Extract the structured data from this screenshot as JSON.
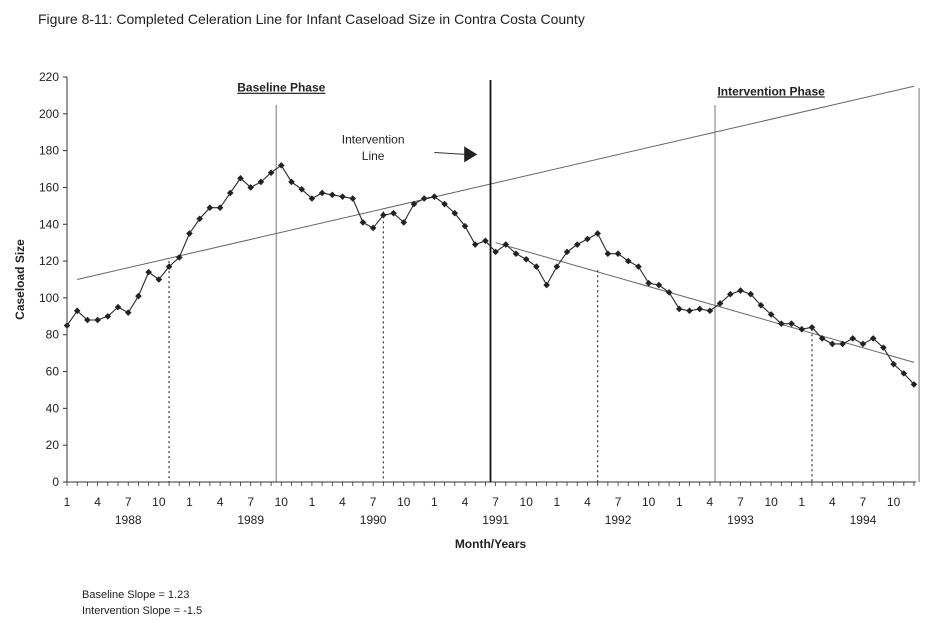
{
  "figure": {
    "title": "Figure 8-11: Completed Celeration Line for Infant Caseload Size in Contra Costa County",
    "notes": [
      "Baseline Slope = 1.23",
      "Intervention Slope = -1.5"
    ]
  },
  "chart_data": {
    "type": "line",
    "title": "Figure 8-11: Completed Celeration Line for Infant Caseload Size in Contra Costa County",
    "xlabel": "Month/Years",
    "ylabel": "Caseload Size",
    "ylim": [
      0,
      220
    ],
    "yticks": [
      0,
      20,
      40,
      60,
      80,
      100,
      120,
      140,
      160,
      180,
      200,
      220
    ],
    "xlim": [
      1,
      84
    ],
    "month_ticks": [
      {
        "i": 1,
        "label": "1"
      },
      {
        "i": 4,
        "label": "4"
      },
      {
        "i": 7,
        "label": "7"
      },
      {
        "i": 10,
        "label": "10"
      },
      {
        "i": 13,
        "label": "1"
      },
      {
        "i": 16,
        "label": "4"
      },
      {
        "i": 19,
        "label": "7"
      },
      {
        "i": 22,
        "label": "10"
      },
      {
        "i": 25,
        "label": "1"
      },
      {
        "i": 28,
        "label": "4"
      },
      {
        "i": 31,
        "label": "7"
      },
      {
        "i": 34,
        "label": "10"
      },
      {
        "i": 37,
        "label": "1"
      },
      {
        "i": 40,
        "label": "4"
      },
      {
        "i": 43,
        "label": "7"
      },
      {
        "i": 46,
        "label": "10"
      },
      {
        "i": 49,
        "label": "1"
      },
      {
        "i": 52,
        "label": "4"
      },
      {
        "i": 55,
        "label": "7"
      },
      {
        "i": 58,
        "label": "10"
      },
      {
        "i": 61,
        "label": "1"
      },
      {
        "i": 64,
        "label": "4"
      },
      {
        "i": 67,
        "label": "7"
      },
      {
        "i": 70,
        "label": "10"
      },
      {
        "i": 73,
        "label": "1"
      },
      {
        "i": 76,
        "label": "4"
      },
      {
        "i": 79,
        "label": "7"
      },
      {
        "i": 82,
        "label": "10"
      }
    ],
    "year_labels": [
      {
        "i": 7,
        "label": "1988"
      },
      {
        "i": 19,
        "label": "1989"
      },
      {
        "i": 31,
        "label": "1990"
      },
      {
        "i": 43,
        "label": "1991"
      },
      {
        "i": 55,
        "label": "1992"
      },
      {
        "i": 67,
        "label": "1993"
      },
      {
        "i": 79,
        "label": "1994"
      }
    ],
    "series": [
      {
        "values": [
          85,
          93,
          88,
          88,
          90,
          95,
          92,
          101,
          114,
          110,
          117,
          122,
          135,
          143,
          149,
          149,
          157,
          165,
          160,
          163,
          168,
          172,
          163,
          159,
          154,
          157,
          156,
          155,
          154,
          141,
          138,
          145,
          146,
          141,
          151,
          154,
          155,
          151,
          146,
          139,
          129,
          131,
          125,
          129,
          124,
          121,
          117,
          107,
          117,
          125,
          129,
          132,
          135,
          124,
          124,
          120,
          117,
          108,
          107,
          103,
          94,
          93,
          94,
          93,
          97,
          102,
          104,
          102,
          96,
          91,
          86,
          86,
          83,
          84,
          78,
          75,
          75,
          78,
          75,
          78,
          73,
          64,
          59,
          53
        ],
        "marker": "diamond"
      }
    ],
    "celeration_lines": [
      {
        "name": "baseline",
        "from": [
          2,
          110
        ],
        "to": [
          84,
          215
        ]
      },
      {
        "name": "intervention",
        "from": [
          43,
          130
        ],
        "to": [
          84,
          65
        ]
      }
    ],
    "vertical_lines": [
      {
        "i": 21.5,
        "style": "solid"
      },
      {
        "i": 42.5,
        "style": "solid-bold"
      },
      {
        "i": 64.5,
        "style": "solid"
      },
      {
        "i": 84.5,
        "style": "solid"
      }
    ],
    "mid_markers": [
      {
        "i": 11,
        "y": 120
      },
      {
        "i": 32,
        "y": 147
      },
      {
        "i": 53,
        "y": 115
      },
      {
        "i": 74,
        "y": 83
      }
    ],
    "annotations": [
      {
        "text": "Baseline Phase",
        "i": 22,
        "y": 212,
        "underline": true
      },
      {
        "text": "Intervention Phase",
        "i": 70,
        "y": 210,
        "underline": true
      },
      {
        "text": "Intervention",
        "i": 31,
        "y": 184
      },
      {
        "text": "Line",
        "i": 31,
        "y": 175
      }
    ],
    "arrow": {
      "from": [
        37,
        179
      ],
      "to": [
        41,
        178
      ]
    },
    "colors": {
      "line": "#2a2a2a",
      "celeration": "#666666",
      "axis": "#333333"
    },
    "grid": false,
    "legend": "none"
  }
}
